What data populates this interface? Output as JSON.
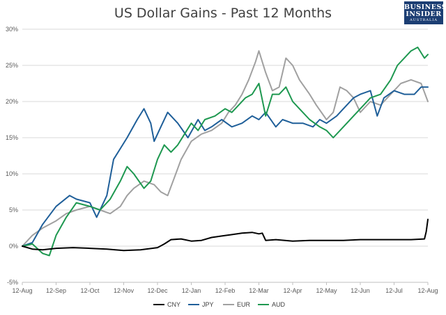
{
  "chart_data": {
    "type": "line",
    "title": "US Dollar Gains - Past 12 Months",
    "xlabel": "",
    "ylabel": "",
    "ylim": [
      -5,
      30
    ],
    "y_ticks": [
      "-5%",
      "0%",
      "5%",
      "10%",
      "15%",
      "20%",
      "25%",
      "30%"
    ],
    "y_tick_values": [
      -5,
      0,
      5,
      10,
      15,
      20,
      25,
      30
    ],
    "x_ticks": [
      "12-Aug",
      "12-Sep",
      "12-Oct",
      "12-Nov",
      "12-Dec",
      "12-Jan",
      "12-Feb",
      "12-Mar",
      "12-Apr",
      "12-May",
      "12-Jun",
      "12-Jul",
      "12-Aug"
    ],
    "x_range": [
      0,
      12
    ],
    "grid": "horizontal",
    "legend_position": "bottom",
    "series": [
      {
        "name": "CNY",
        "color": "#000000",
        "x": [
          0,
          0.3,
          0.6,
          1,
          1.5,
          2,
          2.5,
          3,
          3.5,
          4,
          4.2,
          4.4,
          4.7,
          5,
          5.3,
          5.6,
          5.9,
          6.2,
          6.5,
          6.8,
          7,
          7.1,
          7.2,
          7.5,
          8,
          8.5,
          9,
          9.5,
          10,
          10.5,
          11,
          11.5,
          11.9,
          11.95,
          12
        ],
        "values": [
          0,
          -0.4,
          -0.5,
          -0.3,
          -0.2,
          -0.3,
          -0.4,
          -0.6,
          -0.5,
          -0.2,
          0.3,
          0.9,
          1.0,
          0.7,
          0.8,
          1.2,
          1.4,
          1.6,
          1.8,
          1.9,
          1.7,
          1.8,
          0.8,
          0.9,
          0.7,
          0.8,
          0.8,
          0.8,
          0.9,
          0.9,
          0.9,
          0.9,
          1.0,
          2.0,
          3.7
        ]
      },
      {
        "name": "JPY",
        "color": "#1f5f99",
        "x": [
          0,
          0.3,
          0.6,
          1,
          1.4,
          1.6,
          2,
          2.2,
          2.5,
          2.7,
          2.9,
          3.1,
          3.4,
          3.6,
          3.8,
          3.9,
          4.1,
          4.3,
          4.6,
          4.9,
          5.2,
          5.4,
          5.6,
          5.9,
          6.2,
          6.5,
          6.8,
          7,
          7.2,
          7.5,
          7.7,
          8,
          8.3,
          8.6,
          8.8,
          9,
          9.3,
          9.6,
          9.8,
          10,
          10.3,
          10.5,
          10.7,
          11,
          11.3,
          11.6,
          11.8,
          12
        ],
        "values": [
          0,
          0.5,
          3.0,
          5.5,
          7.0,
          6.5,
          6.0,
          4.0,
          7.0,
          12.0,
          13.5,
          15.0,
          17.5,
          19.0,
          17.0,
          14.5,
          16.5,
          18.5,
          17.0,
          15.0,
          17.5,
          16.0,
          16.5,
          17.5,
          16.5,
          17.0,
          18.0,
          17.5,
          18.5,
          16.5,
          17.5,
          17.0,
          17.0,
          16.5,
          17.5,
          17.0,
          18.0,
          19.5,
          20.5,
          21.0,
          21.5,
          18.0,
          20.5,
          21.5,
          21.0,
          21.0,
          22.0,
          22.0
        ]
      },
      {
        "name": "EUR",
        "color": "#a0a0a0",
        "x": [
          0,
          0.3,
          0.6,
          1,
          1.3,
          1.6,
          2,
          2.3,
          2.6,
          2.9,
          3.1,
          3.3,
          3.6,
          3.9,
          4.1,
          4.3,
          4.5,
          4.7,
          5,
          5.3,
          5.6,
          5.9,
          6.1,
          6.3,
          6.5,
          6.7,
          6.9,
          7,
          7.2,
          7.4,
          7.6,
          7.8,
          8,
          8.2,
          8.5,
          8.7,
          9,
          9.2,
          9.4,
          9.6,
          9.8,
          10,
          10.3,
          10.6,
          10.9,
          11.2,
          11.5,
          11.8,
          12
        ],
        "values": [
          0,
          1.5,
          2.5,
          3.5,
          4.5,
          5.0,
          5.5,
          5.0,
          4.5,
          5.5,
          7.0,
          8.0,
          9.0,
          8.5,
          7.5,
          7.0,
          9.5,
          12.0,
          14.5,
          15.5,
          16.0,
          17.0,
          18.5,
          19.5,
          21.0,
          23.0,
          25.5,
          27.0,
          24.0,
          21.5,
          22.0,
          26.0,
          25.0,
          23.0,
          21.0,
          19.5,
          17.5,
          18.5,
          22.0,
          21.5,
          20.5,
          18.5,
          20.0,
          19.5,
          21.0,
          22.5,
          23.0,
          22.5,
          20.0
        ]
      },
      {
        "name": "AUD",
        "color": "#1e9850",
        "x": [
          0,
          0.3,
          0.6,
          0.8,
          1,
          1.3,
          1.6,
          2,
          2.3,
          2.6,
          2.9,
          3.1,
          3.3,
          3.6,
          3.8,
          4,
          4.2,
          4.4,
          4.6,
          4.8,
          5,
          5.2,
          5.4,
          5.7,
          6,
          6.2,
          6.4,
          6.6,
          6.8,
          7,
          7.2,
          7.4,
          7.6,
          7.8,
          8,
          8.2,
          8.5,
          8.8,
          9,
          9.2,
          9.5,
          9.8,
          10,
          10.3,
          10.6,
          10.9,
          11.1,
          11.3,
          11.5,
          11.7,
          11.9,
          12
        ],
        "values": [
          0,
          0.3,
          -1.0,
          -1.3,
          1.5,
          4.0,
          6.0,
          5.5,
          5.0,
          6.5,
          9.0,
          11.0,
          10.0,
          8.0,
          9.0,
          12.0,
          14.0,
          13.0,
          14.0,
          15.5,
          17.0,
          16.0,
          17.5,
          18.0,
          19.0,
          18.5,
          19.5,
          20.5,
          21.0,
          22.5,
          18.0,
          21.0,
          21.0,
          22.0,
          20.0,
          19.0,
          17.5,
          16.5,
          16.0,
          15.0,
          16.5,
          18.0,
          19.0,
          20.5,
          21.0,
          23.0,
          25.0,
          26.0,
          27.0,
          27.5,
          26.0,
          26.5
        ]
      }
    ]
  },
  "logo": {
    "line1": "BUSINESS",
    "line2": "INSIDER",
    "line3": "AUSTRALIA"
  }
}
